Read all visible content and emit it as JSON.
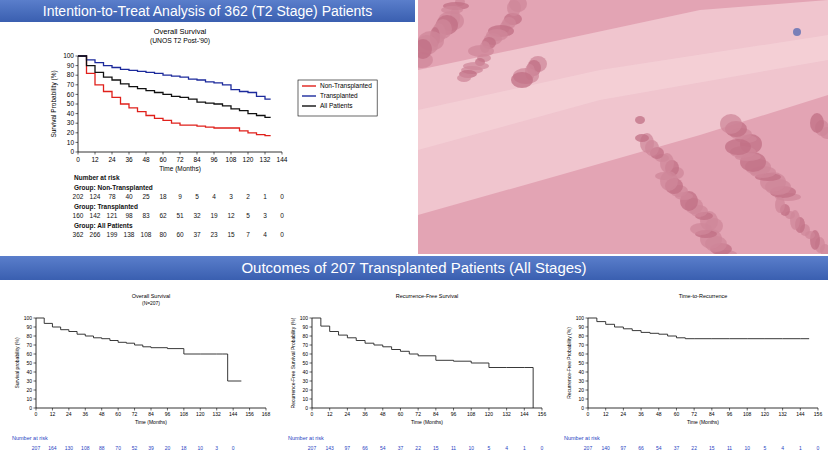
{
  "slide": {
    "title": "Intention-to-Treat Analysis of 362 (T2 Stage) Patients",
    "section_title": "Outcomes of 207 Transplanted Patients (All Stages)"
  },
  "chart_data": [
    {
      "type": "line",
      "title": "Overall Survival",
      "subtitle": "(UNOS T2 Post-'90)",
      "x_label": "Time (Months)",
      "y_label": "Survival Probability (%)",
      "xlim": [
        0,
        144
      ],
      "xticks": [
        0,
        12,
        24,
        36,
        48,
        60,
        72,
        84,
        96,
        108,
        120,
        132,
        144
      ],
      "ylim": [
        0,
        100
      ],
      "yticks": [
        0,
        10,
        20,
        30,
        40,
        50,
        60,
        70,
        80,
        90,
        100
      ],
      "line_style": "step",
      "legend": "right",
      "series": [
        {
          "name": "Non-Transplanted",
          "color": "#e0201b",
          "x": [
            0,
            6,
            12,
            18,
            24,
            30,
            36,
            42,
            48,
            54,
            60,
            66,
            72,
            78,
            84,
            90,
            96,
            102,
            108,
            114,
            120,
            126,
            132,
            136
          ],
          "values": [
            100,
            82,
            70,
            63,
            57,
            50,
            46,
            42,
            38,
            35,
            33,
            30,
            28,
            28,
            27,
            26,
            25,
            25,
            25,
            22,
            20,
            18,
            17,
            17
          ]
        },
        {
          "name": "Transplanted",
          "color": "#1c2a9c",
          "x": [
            0,
            6,
            12,
            18,
            24,
            30,
            36,
            42,
            48,
            54,
            60,
            66,
            72,
            78,
            84,
            90,
            96,
            102,
            108,
            114,
            120,
            126,
            132,
            136
          ],
          "values": [
            100,
            96,
            93,
            90,
            88,
            86,
            85,
            84,
            83,
            82,
            80,
            79,
            78,
            76,
            75,
            73,
            72,
            70,
            65,
            63,
            62,
            58,
            55,
            55
          ]
        },
        {
          "name": "All Patients",
          "color": "#111111",
          "x": [
            0,
            6,
            12,
            18,
            24,
            30,
            36,
            42,
            48,
            54,
            60,
            66,
            72,
            78,
            84,
            90,
            96,
            102,
            108,
            114,
            120,
            126,
            132,
            136
          ],
          "values": [
            100,
            90,
            83,
            78,
            75,
            71,
            68,
            66,
            64,
            62,
            60,
            58,
            57,
            55,
            52,
            51,
            50,
            48,
            45,
            43,
            40,
            38,
            36,
            36
          ]
        }
      ],
      "risk_table": {
        "title": "Number at risk",
        "color": "#111111",
        "rows": [
          {
            "name": "Group: Non-Transplanted",
            "values": [
              202,
              124,
              78,
              40,
              25,
              18,
              9,
              5,
              4,
              3,
              2,
              1,
              0
            ]
          },
          {
            "name": "Group: Transplanted",
            "values": [
              160,
              142,
              121,
              98,
              83,
              62,
              51,
              32,
              19,
              12,
              5,
              3,
              0
            ]
          },
          {
            "name": "Group: All Patients",
            "values": [
              362,
              266,
              199,
              138,
              108,
              80,
              60,
              37,
              23,
              15,
              7,
              4,
              0
            ]
          }
        ]
      }
    },
    {
      "type": "line",
      "title": "Overall Survival",
      "subtitle": "(N=207)",
      "x_label": "Time (Months)",
      "y_label": "Survival probability (%)",
      "xlim": [
        0,
        168
      ],
      "xticks": [
        0,
        12,
        24,
        36,
        48,
        60,
        72,
        84,
        96,
        108,
        120,
        132,
        144,
        156,
        168
      ],
      "ylim": [
        0,
        100
      ],
      "yticks": [
        0,
        10,
        20,
        30,
        40,
        50,
        60,
        70,
        80,
        90,
        100
      ],
      "line_style": "step",
      "series": [
        {
          "color": "#222222",
          "x": [
            0,
            6,
            12,
            18,
            24,
            30,
            36,
            42,
            48,
            54,
            60,
            66,
            72,
            78,
            84,
            96,
            108,
            120,
            132,
            136,
            140,
            150
          ],
          "values": [
            100,
            94,
            90,
            87,
            85,
            82,
            80,
            78,
            77,
            75,
            73,
            72,
            70,
            68,
            67,
            66,
            60,
            60,
            60,
            60,
            30,
            30
          ]
        }
      ],
      "risk_table": {
        "title": "Number at risk",
        "color": "#1f3fbf",
        "rows": [
          {
            "values": [
              207,
              164,
              130,
              108,
              88,
              70,
              52,
              39,
              20,
              18,
              10,
              3,
              0
            ]
          }
        ]
      }
    },
    {
      "type": "line",
      "title": "Recurrence-Free Survival",
      "x_label": "Time (Months)",
      "y_label": "Recurrence-Free Survival Probability (%)",
      "xlim": [
        0,
        156
      ],
      "xticks": [
        0,
        12,
        24,
        36,
        48,
        60,
        72,
        84,
        96,
        108,
        120,
        132,
        144,
        156
      ],
      "ylim": [
        0,
        100
      ],
      "yticks": [
        0,
        10,
        20,
        30,
        40,
        50,
        60,
        70,
        80,
        90,
        100
      ],
      "line_style": "step",
      "series": [
        {
          "color": "#222222",
          "x": [
            0,
            6,
            12,
            18,
            24,
            30,
            36,
            42,
            48,
            54,
            60,
            66,
            72,
            84,
            96,
            108,
            120,
            132,
            144,
            150
          ],
          "values": [
            100,
            91,
            85,
            81,
            78,
            75,
            72,
            70,
            68,
            65,
            63,
            60,
            58,
            53,
            52,
            50,
            45,
            45,
            45,
            0
          ]
        }
      ],
      "risk_table": {
        "title": "Number at risk",
        "color": "#1f3fbf",
        "rows": [
          {
            "values": [
              207,
              143,
              97,
              66,
              54,
              37,
              22,
              15,
              11,
              10,
              5,
              4,
              1,
              0
            ]
          }
        ]
      }
    },
    {
      "type": "line",
      "title": "Time-to-Recurrence",
      "x_label": "Time (Months)",
      "y_label": "Recurrence-Free Probability (%)",
      "xlim": [
        0,
        156
      ],
      "xticks": [
        0,
        12,
        24,
        36,
        48,
        60,
        72,
        84,
        96,
        108,
        120,
        132,
        144,
        156
      ],
      "ylim": [
        0,
        100
      ],
      "yticks": [
        0,
        10,
        20,
        30,
        40,
        50,
        60,
        70,
        80,
        90,
        100
      ],
      "line_style": "step",
      "series": [
        {
          "color": "#222222",
          "x": [
            0,
            6,
            12,
            18,
            24,
            30,
            36,
            42,
            48,
            54,
            60,
            66,
            72,
            84,
            96,
            108,
            120,
            132,
            144,
            150
          ],
          "values": [
            100,
            96,
            93,
            90,
            88,
            86,
            84,
            83,
            82,
            80,
            78,
            77,
            77,
            77,
            77,
            77,
            77,
            77,
            77,
            77
          ]
        }
      ],
      "risk_table": {
        "title": "Number at risk",
        "color": "#1f3fbf",
        "rows": [
          {
            "values": [
              207,
              140,
              97,
              66,
              54,
              37,
              22,
              15,
              11,
              10,
              5,
              4,
              1,
              0
            ]
          }
        ]
      }
    }
  ]
}
